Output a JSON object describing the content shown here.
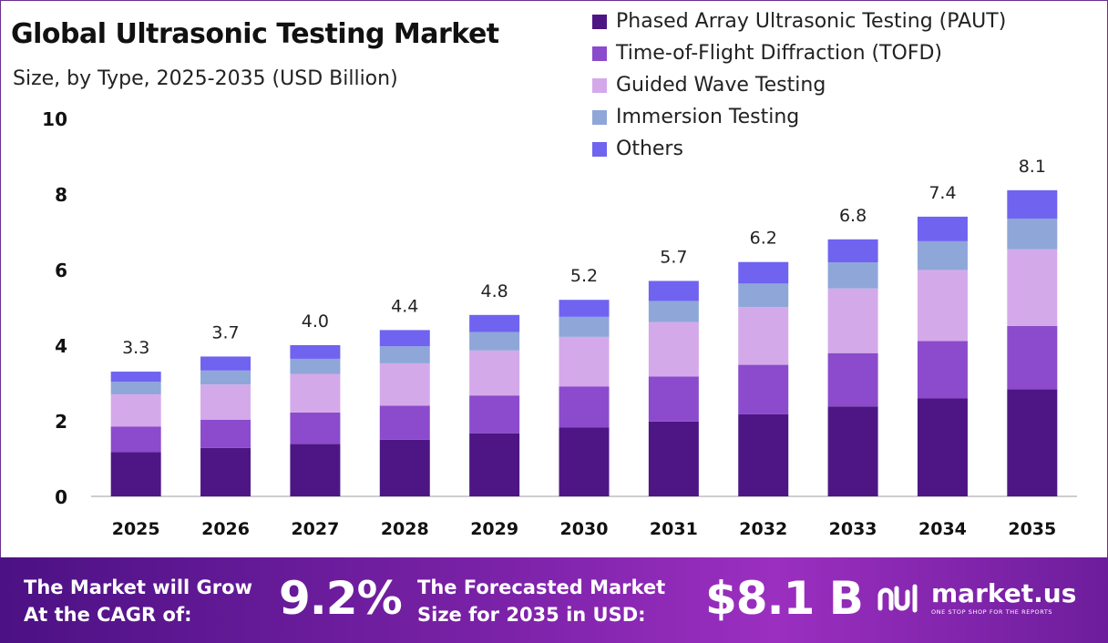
{
  "title": "Global Ultrasonic Testing Market",
  "subtitle": "Size, by Type, 2025-2035 (USD Billion)",
  "colors": {
    "paut": "#4e1684",
    "tofd": "#8b4bcc",
    "guided": "#d4a9ea",
    "immersion": "#8fa6d8",
    "others": "#6f63f0",
    "footer_start": "#4c1184",
    "footer_end": "#9b2fc0"
  },
  "chart_data": {
    "type": "bar",
    "stacked": true,
    "categories": [
      "2025",
      "2026",
      "2027",
      "2028",
      "2029",
      "2030",
      "2031",
      "2032",
      "2033",
      "2034",
      "2035"
    ],
    "series": [
      {
        "name": "Phased Array Ultrasonic Testing (PAUT)",
        "color": "#4e1684",
        "values": [
          1.17,
          1.28,
          1.39,
          1.5,
          1.67,
          1.82,
          1.98,
          2.17,
          2.38,
          2.59,
          2.83
        ]
      },
      {
        "name": "Time-of-Flight Diffraction (TOFD)",
        "color": "#8b4bcc",
        "values": [
          0.68,
          0.75,
          0.83,
          0.9,
          1.0,
          1.09,
          1.19,
          1.31,
          1.41,
          1.52,
          1.68
        ]
      },
      {
        "name": "Guided Wave Testing",
        "color": "#d4a9ea",
        "values": [
          0.85,
          0.93,
          1.02,
          1.12,
          1.19,
          1.31,
          1.44,
          1.53,
          1.71,
          1.88,
          2.03
        ]
      },
      {
        "name": "Immersion Testing",
        "color": "#8fa6d8",
        "values": [
          0.33,
          0.37,
          0.4,
          0.45,
          0.49,
          0.53,
          0.56,
          0.62,
          0.69,
          0.76,
          0.81
        ]
      },
      {
        "name": "Others",
        "color": "#6f63f0",
        "values": [
          0.27,
          0.37,
          0.36,
          0.43,
          0.45,
          0.45,
          0.53,
          0.57,
          0.61,
          0.65,
          0.75
        ]
      }
    ],
    "totals": [
      "3.3",
      "3.7",
      "4.0",
      "4.4",
      "4.8",
      "5.2",
      "5.7",
      "6.2",
      "6.8",
      "7.4",
      "8.1"
    ],
    "yticks": [
      "0",
      "2",
      "4",
      "6",
      "8",
      "10"
    ],
    "ylim": [
      0,
      10
    ],
    "grid": false,
    "legend": "top-right",
    "xlabel": "",
    "ylabel": ""
  },
  "footer": {
    "cagr_text": "The Market will Grow\nAt the CAGR of:",
    "cagr_value": "9.2%",
    "forecast_text": "The Forecasted Market\nSize for 2035 in USD:",
    "forecast_value": "$8.1 B",
    "brand_name": "market.us",
    "brand_tagline": "ONE STOP SHOP FOR THE REPORTS"
  }
}
